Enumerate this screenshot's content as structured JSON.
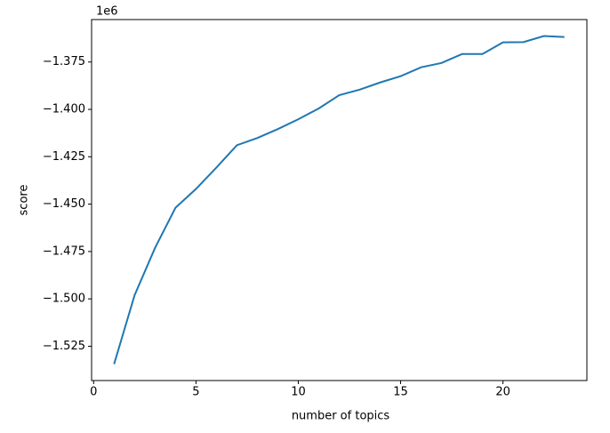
{
  "chart_data": {
    "type": "line",
    "x_label": "number of topics",
    "y_label": "score",
    "y_offset_text": "1e6",
    "x": [
      1,
      2,
      3,
      4,
      5,
      6,
      7,
      8,
      9,
      10,
      11,
      12,
      13,
      14,
      15,
      16,
      17,
      18,
      19,
      20,
      21,
      22,
      23
    ],
    "series": [
      {
        "color": "#1f77b4",
        "values": [
          -1.5344,
          -1.4981,
          -1.4731,
          -1.4519,
          -1.442,
          -1.4307,
          -1.4189,
          -1.4151,
          -1.4104,
          -1.4052,
          -1.3995,
          -1.3925,
          -1.3896,
          -1.3858,
          -1.3825,
          -1.3778,
          -1.3755,
          -1.3708,
          -1.3708,
          -1.3646,
          -1.3645,
          -1.3613,
          -1.3618
        ]
      }
    ],
    "xlim": [
      -0.1,
      24.1
    ],
    "xticks": [
      0,
      5,
      10,
      15,
      20
    ],
    "ylim": [
      -1.5431,
      -1.3526
    ],
    "yticks": [
      {
        "value": -1.525,
        "label": "−1.525"
      },
      {
        "value": -1.5,
        "label": "−1.500"
      },
      {
        "value": -1.475,
        "label": "−1.475"
      },
      {
        "value": -1.45,
        "label": "−1.450"
      },
      {
        "value": -1.425,
        "label": "−1.425"
      },
      {
        "value": -1.4,
        "label": "−1.400"
      },
      {
        "value": -1.375,
        "label": "−1.375"
      }
    ],
    "grid": false
  }
}
